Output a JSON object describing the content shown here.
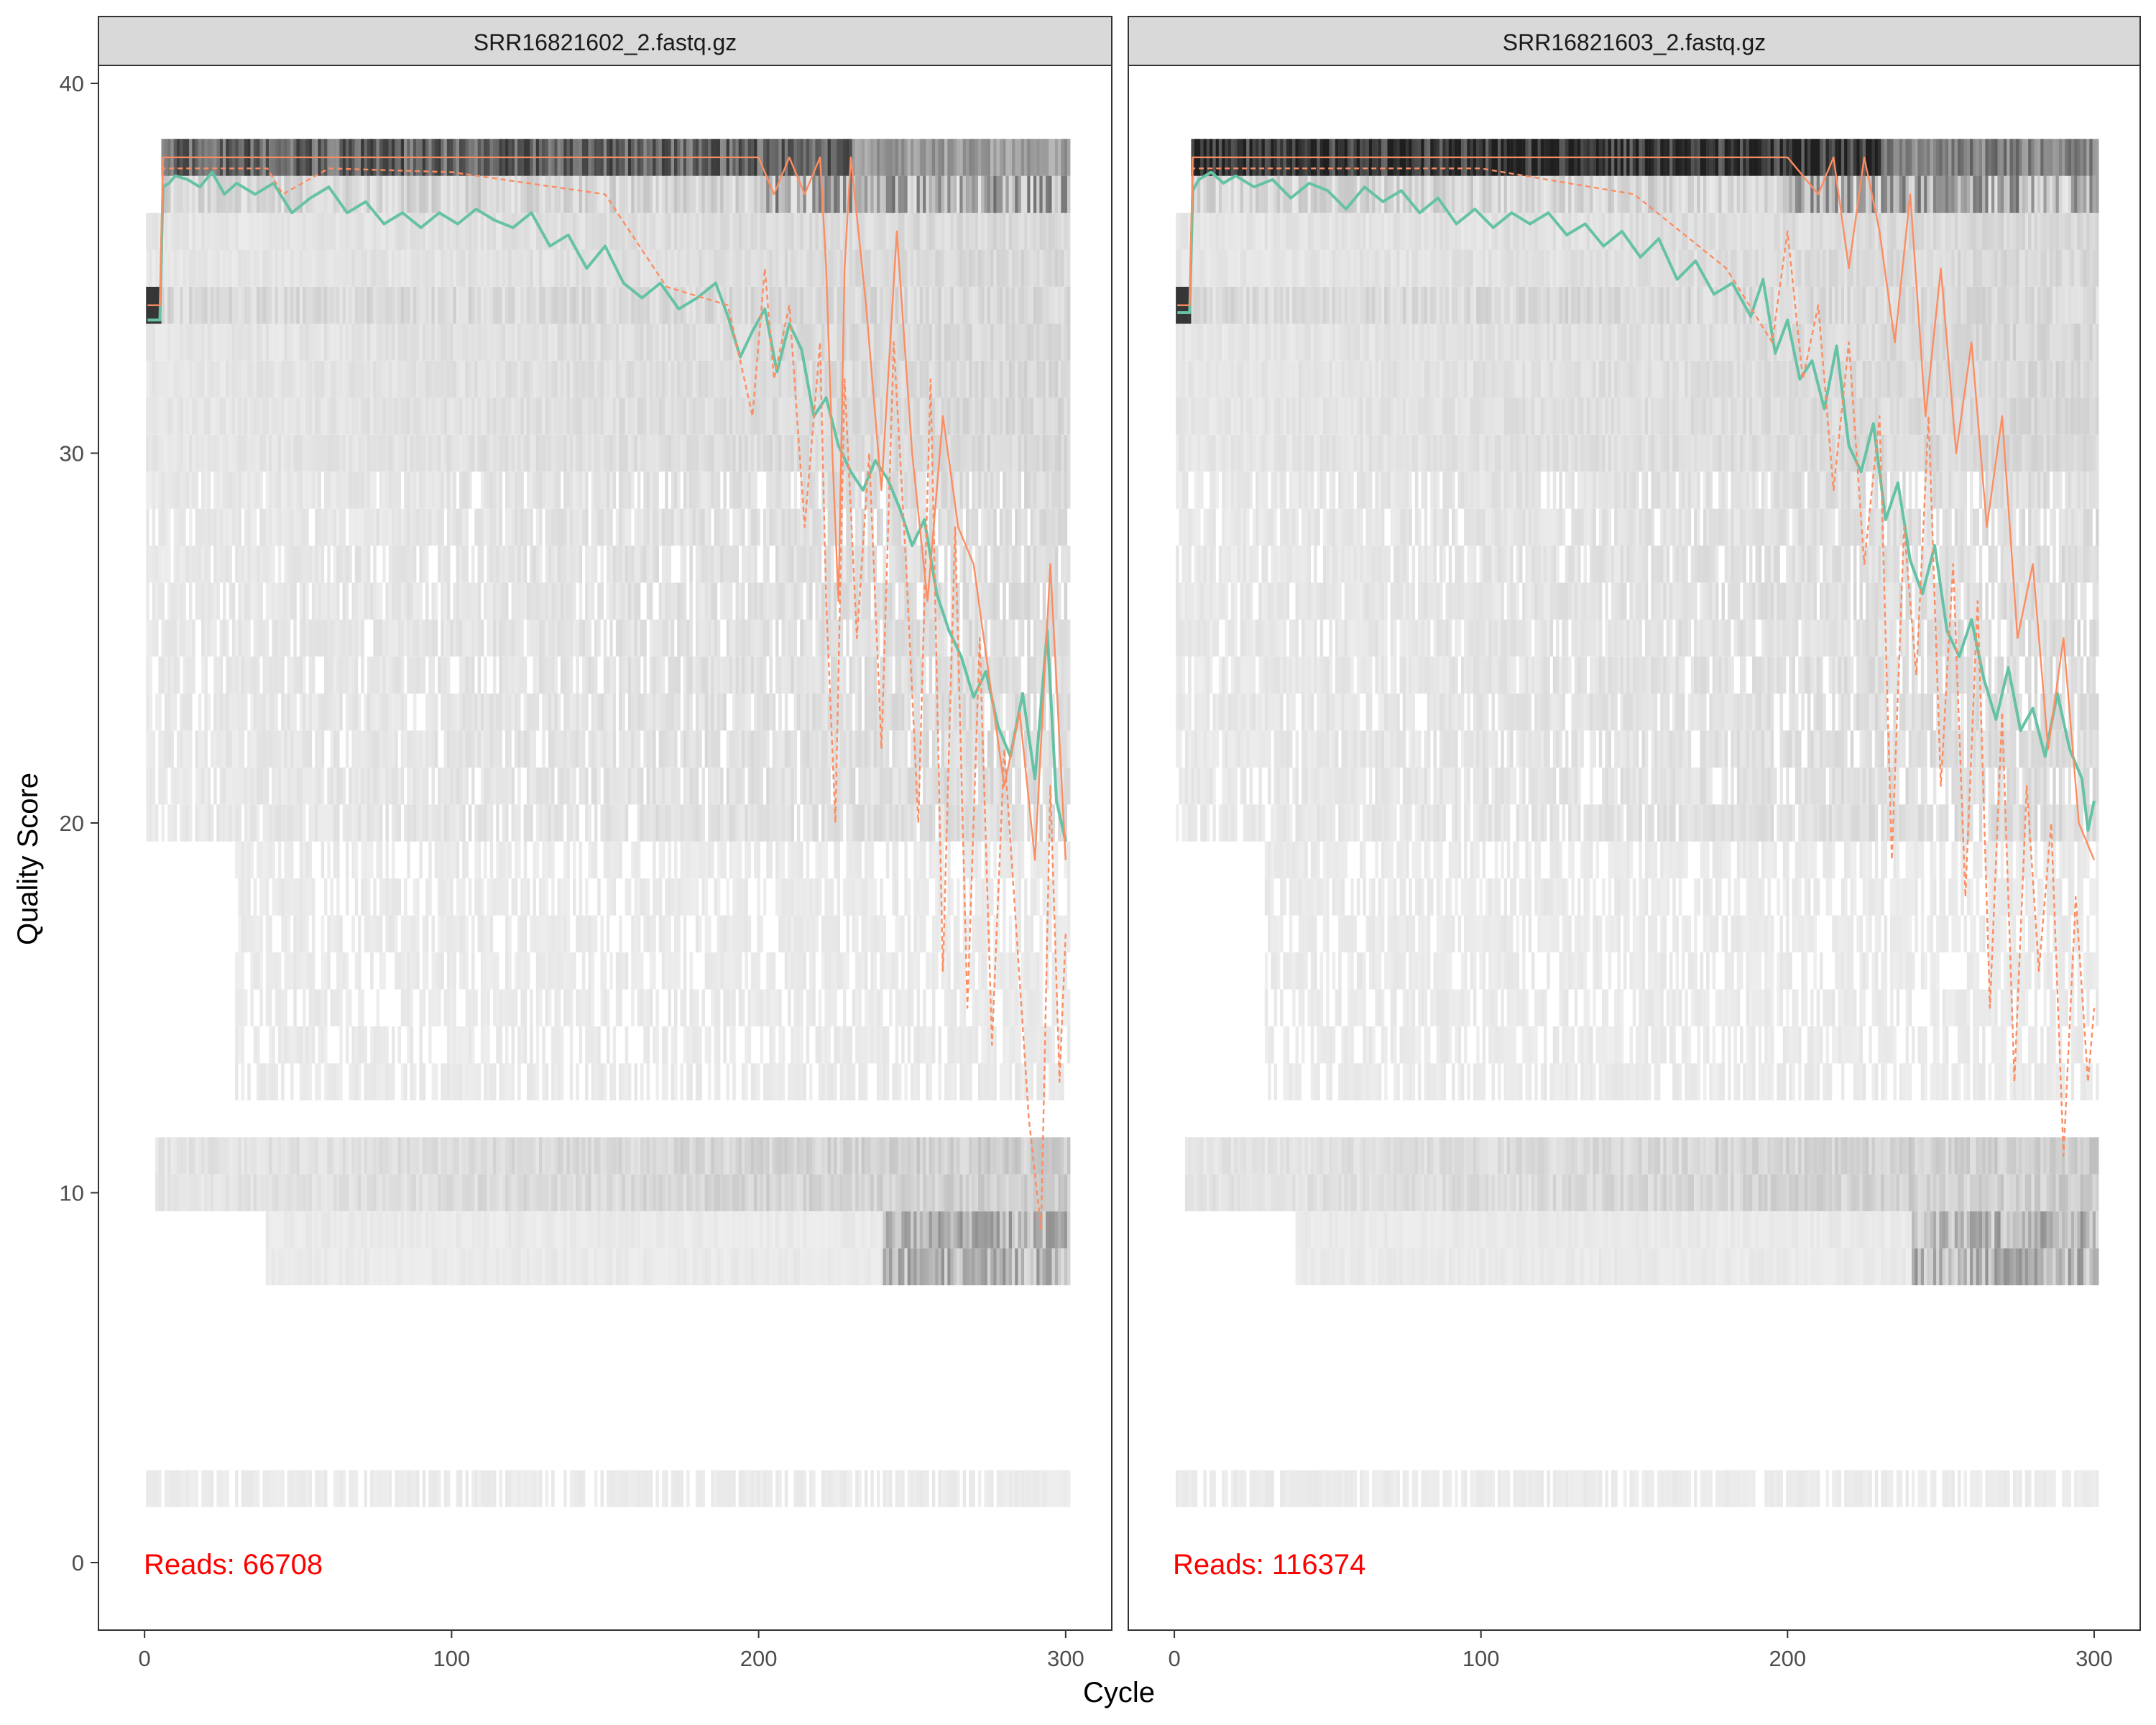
{
  "chart_data": [
    {
      "type": "heatmap",
      "panel_title": "SRR16821602_2.fastq.gz",
      "xlabel": "Cycle",
      "ylabel": "Quality Score",
      "xlim": [
        0,
        301
      ],
      "ylim": [
        0,
        40
      ],
      "x_ticks": [
        0,
        100,
        200,
        300
      ],
      "y_ticks": [
        0,
        10,
        20,
        30,
        40
      ],
      "grid": false,
      "annotation": "Reads:  66708",
      "series": [
        {
          "color": "#66C2A5",
          "style": "solid",
          "points": [
            [
              1,
              33.6
            ],
            [
              5,
              33.6
            ],
            [
              6,
              37.2
            ],
            [
              8,
              37.3
            ],
            [
              10,
              37.5
            ],
            [
              14,
              37.4
            ],
            [
              18,
              37.2
            ],
            [
              22,
              37.6
            ],
            [
              26,
              37
            ],
            [
              30,
              37.3
            ],
            [
              36,
              37
            ],
            [
              42,
              37.3
            ],
            [
              48,
              36.5
            ],
            [
              54,
              36.9
            ],
            [
              60,
              37.2
            ],
            [
              66,
              36.5
            ],
            [
              72,
              36.8
            ],
            [
              78,
              36.2
            ],
            [
              84,
              36.5
            ],
            [
              90,
              36.1
            ],
            [
              96,
              36.5
            ],
            [
              102,
              36.2
            ],
            [
              108,
              36.6
            ],
            [
              114,
              36.3
            ],
            [
              120,
              36.1
            ],
            [
              126,
              36.5
            ],
            [
              132,
              35.6
            ],
            [
              138,
              35.9
            ],
            [
              144,
              35
            ],
            [
              150,
              35.6
            ],
            [
              156,
              34.6
            ],
            [
              162,
              34.2
            ],
            [
              168,
              34.6
            ],
            [
              174,
              33.9
            ],
            [
              180,
              34.2
            ],
            [
              186,
              34.6
            ],
            [
              190,
              33.7
            ],
            [
              194,
              32.6
            ],
            [
              198,
              33.3
            ],
            [
              202,
              33.9
            ],
            [
              206,
              32.2
            ],
            [
              210,
              33.5
            ],
            [
              214,
              32.8
            ],
            [
              218,
              31
            ],
            [
              222,
              31.5
            ],
            [
              226,
              30.2
            ],
            [
              230,
              29.5
            ],
            [
              234,
              29
            ],
            [
              238,
              29.8
            ],
            [
              242,
              29.3
            ],
            [
              246,
              28.5
            ],
            [
              250,
              27.5
            ],
            [
              254,
              28.2
            ],
            [
              258,
              26.2
            ],
            [
              262,
              25.2
            ],
            [
              266,
              24.5
            ],
            [
              270,
              23.4
            ],
            [
              274,
              24.1
            ],
            [
              278,
              22.6
            ],
            [
              282,
              21.8
            ],
            [
              286,
              23.5
            ],
            [
              290,
              21.2
            ],
            [
              294,
              25.2
            ],
            [
              297,
              20.6
            ],
            [
              300,
              19.5
            ]
          ]
        },
        {
          "color": "#FC8D62",
          "style": "solid",
          "points": [
            [
              1,
              34
            ],
            [
              5,
              34
            ],
            [
              6,
              38
            ],
            [
              100,
              38
            ],
            [
              180,
              38
            ],
            [
              200,
              38
            ],
            [
              205,
              37
            ],
            [
              210,
              38
            ],
            [
              215,
              37
            ],
            [
              220,
              38
            ],
            [
              222,
              35
            ],
            [
              224,
              30
            ],
            [
              226,
              26
            ],
            [
              228,
              35
            ],
            [
              230,
              38
            ],
            [
              235,
              34
            ],
            [
              240,
              29
            ],
            [
              245,
              36
            ],
            [
              250,
              30
            ],
            [
              255,
              26
            ],
            [
              260,
              31
            ],
            [
              265,
              28
            ],
            [
              270,
              27
            ],
            [
              275,
              24
            ],
            [
              280,
              21
            ],
            [
              285,
              23
            ],
            [
              290,
              19
            ],
            [
              295,
              27
            ],
            [
              300,
              19
            ]
          ]
        },
        {
          "color": "#FC8D62",
          "style": "dashed",
          "points": [
            [
              1,
              34
            ],
            [
              5,
              34
            ],
            [
              6,
              37.7
            ],
            [
              40,
              37.7
            ],
            [
              45,
              37
            ],
            [
              60,
              37.7
            ],
            [
              100,
              37.6
            ],
            [
              150,
              37
            ],
            [
              170,
              34.5
            ],
            [
              190,
              34
            ],
            [
              198,
              31
            ],
            [
              202,
              35
            ],
            [
              205,
              32
            ],
            [
              210,
              34
            ],
            [
              215,
              28
            ],
            [
              220,
              33
            ],
            [
              222,
              26
            ],
            [
              225,
              20
            ],
            [
              228,
              32
            ],
            [
              232,
              25
            ],
            [
              236,
              30
            ],
            [
              240,
              22
            ],
            [
              244,
              33
            ],
            [
              248,
              27
            ],
            [
              252,
              20
            ],
            [
              256,
              32
            ],
            [
              260,
              16
            ],
            [
              264,
              28
            ],
            [
              268,
              15
            ],
            [
              272,
              25
            ],
            [
              276,
              14
            ],
            [
              280,
              22
            ],
            [
              284,
              17
            ],
            [
              288,
              12
            ],
            [
              292,
              9
            ],
            [
              295,
              21
            ],
            [
              298,
              13
            ],
            [
              300,
              17
            ]
          ]
        }
      ]
    },
    {
      "type": "heatmap",
      "panel_title": "SRR16821603_2.fastq.gz",
      "xlabel": "Cycle",
      "ylabel": "Quality Score",
      "xlim": [
        0,
        301
      ],
      "ylim": [
        0,
        40
      ],
      "x_ticks": [
        0,
        100,
        200,
        300
      ],
      "y_ticks": [
        0,
        10,
        20,
        30,
        40
      ],
      "grid": false,
      "annotation": "Reads:  116374",
      "series": [
        {
          "color": "#66C2A5",
          "style": "solid",
          "points": [
            [
              1,
              33.8
            ],
            [
              5,
              33.8
            ],
            [
              6,
              37.1
            ],
            [
              8,
              37.4
            ],
            [
              12,
              37.6
            ],
            [
              16,
              37.3
            ],
            [
              20,
              37.5
            ],
            [
              26,
              37.2
            ],
            [
              32,
              37.4
            ],
            [
              38,
              36.9
            ],
            [
              44,
              37.3
            ],
            [
              50,
              37.1
            ],
            [
              56,
              36.6
            ],
            [
              62,
              37.2
            ],
            [
              68,
              36.8
            ],
            [
              74,
              37.1
            ],
            [
              80,
              36.5
            ],
            [
              86,
              36.9
            ],
            [
              92,
              36.2
            ],
            [
              98,
              36.6
            ],
            [
              104,
              36.1
            ],
            [
              110,
              36.5
            ],
            [
              116,
              36.2
            ],
            [
              122,
              36.5
            ],
            [
              128,
              35.9
            ],
            [
              134,
              36.2
            ],
            [
              140,
              35.6
            ],
            [
              146,
              36
            ],
            [
              152,
              35.3
            ],
            [
              158,
              35.8
            ],
            [
              164,
              34.7
            ],
            [
              170,
              35.2
            ],
            [
              176,
              34.3
            ],
            [
              182,
              34.6
            ],
            [
              188,
              33.7
            ],
            [
              192,
              34.7
            ],
            [
              196,
              32.7
            ],
            [
              200,
              33.6
            ],
            [
              204,
              32
            ],
            [
              208,
              32.5
            ],
            [
              212,
              31.2
            ],
            [
              216,
              32.9
            ],
            [
              220,
              30.2
            ],
            [
              224,
              29.5
            ],
            [
              228,
              30.8
            ],
            [
              232,
              28.2
            ],
            [
              236,
              29.2
            ],
            [
              240,
              27.1
            ],
            [
              244,
              26.2
            ],
            [
              248,
              27.5
            ],
            [
              252,
              25.2
            ],
            [
              256,
              24.5
            ],
            [
              260,
              25.5
            ],
            [
              264,
              23.9
            ],
            [
              268,
              22.8
            ],
            [
              272,
              24.2
            ],
            [
              276,
              22.5
            ],
            [
              280,
              23.1
            ],
            [
              284,
              21.8
            ],
            [
              288,
              23.5
            ],
            [
              292,
              22
            ],
            [
              296,
              21.2
            ],
            [
              298,
              19.8
            ],
            [
              300,
              20.6
            ]
          ]
        },
        {
          "color": "#FC8D62",
          "style": "solid",
          "points": [
            [
              1,
              34
            ],
            [
              5,
              34
            ],
            [
              6,
              38
            ],
            [
              150,
              38
            ],
            [
              200,
              38
            ],
            [
              210,
              37
            ],
            [
              215,
              38
            ],
            [
              220,
              35
            ],
            [
              225,
              38
            ],
            [
              230,
              36
            ],
            [
              235,
              33
            ],
            [
              240,
              37
            ],
            [
              245,
              31
            ],
            [
              250,
              35
            ],
            [
              255,
              30
            ],
            [
              260,
              33
            ],
            [
              265,
              28
            ],
            [
              270,
              31
            ],
            [
              275,
              25
            ],
            [
              280,
              27
            ],
            [
              285,
              22
            ],
            [
              290,
              25
            ],
            [
              295,
              20
            ],
            [
              300,
              19
            ]
          ]
        },
        {
          "color": "#FC8D62",
          "style": "dashed",
          "points": [
            [
              1,
              34
            ],
            [
              5,
              34
            ],
            [
              6,
              37.7
            ],
            [
              60,
              37.7
            ],
            [
              100,
              37.7
            ],
            [
              150,
              37
            ],
            [
              180,
              35
            ],
            [
              195,
              33
            ],
            [
              200,
              36
            ],
            [
              205,
              32
            ],
            [
              210,
              34
            ],
            [
              215,
              29
            ],
            [
              220,
              33
            ],
            [
              225,
              27
            ],
            [
              230,
              31
            ],
            [
              234,
              19
            ],
            [
              238,
              28
            ],
            [
              242,
              24
            ],
            [
              246,
              31
            ],
            [
              250,
              21
            ],
            [
              254,
              27
            ],
            [
              258,
              18
            ],
            [
              262,
              26
            ],
            [
              266,
              15
            ],
            [
              270,
              23
            ],
            [
              274,
              13
            ],
            [
              278,
              21
            ],
            [
              282,
              16
            ],
            [
              286,
              20
            ],
            [
              290,
              11
            ],
            [
              294,
              18
            ],
            [
              298,
              13
            ],
            [
              300,
              15
            ]
          ]
        }
      ]
    }
  ]
}
